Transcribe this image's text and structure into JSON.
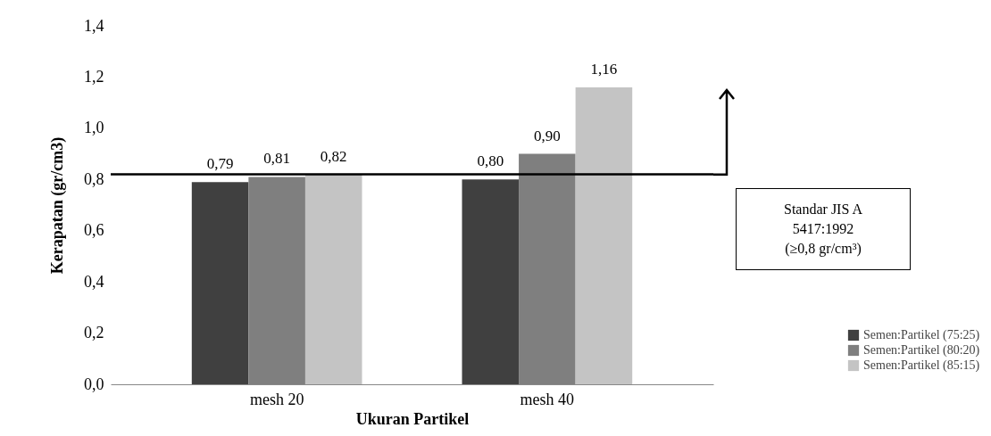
{
  "chart_data": {
    "type": "bar",
    "xlabel": "Ukuran Partikel",
    "ylabel": "Kerapatan (gr/cm3)",
    "categories": [
      "mesh 20",
      "mesh 40"
    ],
    "series": [
      {
        "name": "Semen:Partikel (75:25)",
        "color": "#404040",
        "values": [
          0.79,
          0.8
        ],
        "value_labels": [
          "0,79",
          "0,80"
        ]
      },
      {
        "name": "Semen:Partikel (80:20)",
        "color": "#7f7f7f",
        "values": [
          0.81,
          0.9
        ],
        "value_labels": [
          "0,81",
          "0,90"
        ]
      },
      {
        "name": "Semen:Partikel (85:15)",
        "color": "#c4c4c4",
        "values": [
          0.82,
          1.16
        ],
        "value_labels": [
          "0,82",
          "1,16"
        ]
      }
    ],
    "ylim": [
      0,
      1.4
    ],
    "yticks": [
      {
        "value": 0,
        "label": "0,0"
      },
      {
        "value": 0.2,
        "label": "0,2"
      },
      {
        "value": 0.4,
        "label": "0,4"
      },
      {
        "value": 0.6,
        "label": "0,6"
      },
      {
        "value": 0.8,
        "label": "0,8"
      },
      {
        "value": 1.0,
        "label": "1,0"
      },
      {
        "value": 1.2,
        "label": "1,2"
      },
      {
        "value": 1.4,
        "label": "1,4"
      }
    ],
    "ref_lines": [
      {
        "axis": "y",
        "value": 0.82,
        "color": "#000000"
      }
    ],
    "annotations": [
      "Standar JIS A 5417:1992 (≥0,8 gr/cm³)"
    ],
    "legend": "right",
    "grid": false
  }
}
